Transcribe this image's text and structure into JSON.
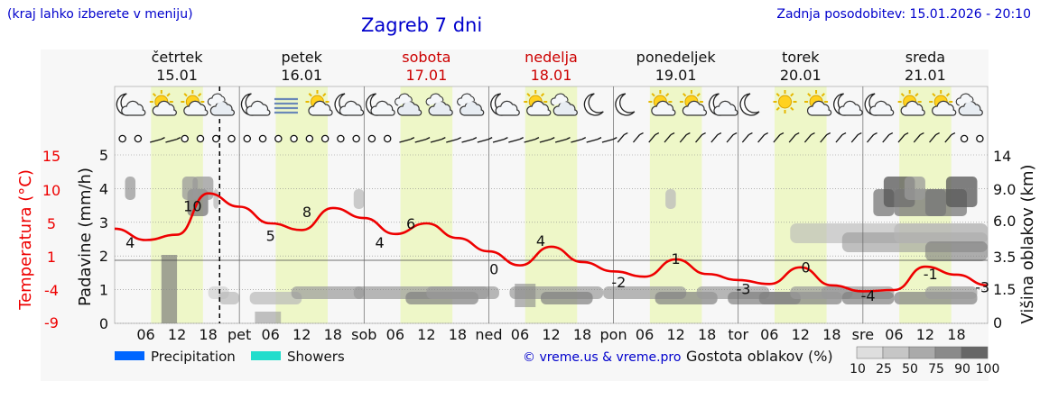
{
  "header": {
    "hint": "(kraj lahko izberete v meniju)",
    "title": "Zagreb 7 dni",
    "updated": "Zadnja posodobitev: 15.01.2026 - 20:10"
  },
  "credit": "© vreme.us & vreme.pro",
  "colors": {
    "temperature": "#ee0000",
    "weekend": "#cc0000",
    "daylight": "#eef7c8",
    "night": "#f3f3f3",
    "precipitation": "#0066ff",
    "showers": "#22ddcc",
    "link": "#0000cc"
  },
  "days": [
    {
      "name": "četrtek",
      "date": "15.01",
      "weekend": false
    },
    {
      "name": "petek",
      "date": "16.01",
      "weekend": false
    },
    {
      "name": "sobota",
      "date": "17.01",
      "weekend": true
    },
    {
      "name": "nedelja",
      "date": "18.01",
      "weekend": true
    },
    {
      "name": "ponedeljek",
      "date": "19.01",
      "weekend": false
    },
    {
      "name": "torek",
      "date": "20.01",
      "weekend": false
    },
    {
      "name": "sreda",
      "date": "21.01",
      "weekend": false
    }
  ],
  "weather_icons": [
    [
      "moon-cloud-icon",
      "sun-cloud-icon",
      "sun-cloud-icon",
      "cloud-icon"
    ],
    [
      "moon-cloud-icon",
      "fog-icon",
      "sun-cloud-icon",
      "moon-cloud-icon"
    ],
    [
      "moon-cloud-icon",
      "cloud-icon",
      "cloud-icon",
      "cloud-icon"
    ],
    [
      "moon-cloud-icon",
      "sun-cloud-icon",
      "cloud-icon",
      "moon-icon"
    ],
    [
      "moon-icon",
      "sun-cloud-icon",
      "sun-cloud-icon",
      "moon-cloud-icon"
    ],
    [
      "moon-icon",
      "sun-icon",
      "sun-cloud-icon",
      "moon-cloud-icon"
    ],
    [
      "moon-cloud-icon",
      "sun-cloud-icon",
      "sun-cloud-icon",
      "cloud-icon"
    ]
  ],
  "wind": [
    [
      "calm",
      "calm",
      "barb",
      "barb",
      "calm",
      "calm",
      "calm",
      "calm"
    ],
    [
      "calm",
      "calm",
      "calm",
      "calm",
      "calm",
      "calm",
      "calm",
      "calm"
    ],
    [
      "calm",
      "calm",
      "barb",
      "barb",
      "barb",
      "barb",
      "barb",
      "barb"
    ],
    [
      "barb",
      "barb",
      "barb",
      "barb",
      "barb",
      "barb",
      "barb",
      "barb"
    ],
    [
      "barb",
      "barb",
      "barb",
      "barb",
      "barb",
      "barb",
      "barb",
      "barb"
    ],
    [
      "barb",
      "barb",
      "barb",
      "barb",
      "barb",
      "barb",
      "barb",
      "barb"
    ],
    [
      "barb",
      "barb",
      "barb",
      "barb",
      "barb",
      "barb",
      "calm",
      "calm"
    ]
  ],
  "legend": {
    "precipitation": "Precipitation",
    "showers": "Showers",
    "cloud_density_label": "Gostota oblakov (%)",
    "cloud_density_ticks": [
      "10",
      "25",
      "50",
      "75",
      "90",
      "100"
    ]
  },
  "chart_data": {
    "type": "line",
    "x_tick_labels": [
      "06",
      "12",
      "18",
      "pet",
      "06",
      "12",
      "18",
      "sob",
      "06",
      "12",
      "18",
      "ned",
      "06",
      "12",
      "18",
      "pon",
      "06",
      "12",
      "18",
      "tor",
      "06",
      "12",
      "18",
      "sre",
      "06",
      "12",
      "18"
    ],
    "left_axis": {
      "label": "Padavine (mm/h)",
      "ticks": [
        "0",
        "1",
        "2",
        "3",
        "4",
        "5"
      ],
      "range": [
        0,
        5
      ]
    },
    "temperature_axis": {
      "label": "Temperatura (°C)",
      "ticks": [
        "-9",
        "-4",
        "1",
        "5",
        "10",
        "15"
      ]
    },
    "right_axis": {
      "label": "Višina oblakov (km)",
      "ticks": [
        "0",
        "1.5",
        "3.5",
        "6.0",
        "9.0",
        "14"
      ]
    },
    "temperature_series": {
      "hours": [
        0,
        6,
        12,
        18,
        24,
        30,
        36,
        42,
        48,
        54,
        60,
        66,
        72,
        78,
        84,
        90,
        96,
        102,
        108,
        114,
        120,
        126,
        132,
        138,
        144,
        150,
        156,
        162,
        168
      ],
      "values": [
        5.2,
        3.5,
        4.3,
        10.5,
        8.5,
        6.0,
        5.0,
        8.3,
        6.8,
        4.4,
        6.0,
        3.8,
        1.8,
        -0.3,
        2.5,
        0.2,
        -1.2,
        -2.0,
        0.6,
        -1.6,
        -2.5,
        -3.1,
        -0.6,
        -3.3,
        -4.2,
        -4.0,
        -0.5,
        -1.7,
        -3.3
      ],
      "extreme_labels": [
        {
          "hour": 3,
          "value": 4,
          "label": "4"
        },
        {
          "hour": 15,
          "value": 10,
          "label": "10"
        },
        {
          "hour": 30,
          "value": 5,
          "label": "5"
        },
        {
          "hour": 37,
          "value": 8,
          "label": "8"
        },
        {
          "hour": 51,
          "value": 4,
          "label": "4"
        },
        {
          "hour": 57,
          "value": 6,
          "label": "6"
        },
        {
          "hour": 73,
          "value": 0,
          "label": "0"
        },
        {
          "hour": 82,
          "value": 4,
          "label": "4"
        },
        {
          "hour": 97,
          "value": -2,
          "label": "-2"
        },
        {
          "hour": 108,
          "value": 1,
          "label": "1"
        },
        {
          "hour": 121,
          "value": -3,
          "label": "-3"
        },
        {
          "hour": 133,
          "value": 0,
          "label": "0"
        },
        {
          "hour": 145,
          "value": -4,
          "label": "-4"
        },
        {
          "hour": 157,
          "value": -1,
          "label": "-1"
        },
        {
          "hour": 167,
          "value": -3,
          "label": "-3"
        }
      ]
    },
    "precipitation_series": {
      "values": [
        0,
        0,
        0,
        0,
        0,
        0,
        0
      ]
    }
  }
}
